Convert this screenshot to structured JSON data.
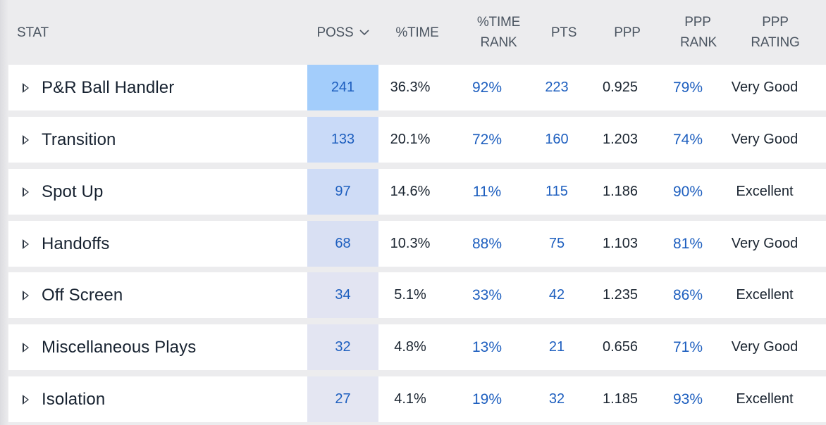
{
  "table": {
    "columns": [
      {
        "key": "stat",
        "label": "STAT"
      },
      {
        "key": "poss",
        "label": "POSS"
      },
      {
        "key": "pct_time",
        "label": "%TIME"
      },
      {
        "key": "pct_time_rank",
        "label": "%TIME RANK"
      },
      {
        "key": "pts",
        "label": "PTS"
      },
      {
        "key": "ppp",
        "label": "PPP"
      },
      {
        "key": "ppp_rank",
        "label": "PPP RANK"
      },
      {
        "key": "ppp_rating",
        "label": "PPP RATING"
      }
    ],
    "sort": {
      "column": "poss",
      "direction": "descending",
      "icon": "chevron-down-icon"
    },
    "rows": [
      {
        "stat": "P&R Ball Handler",
        "poss": "241",
        "pct_time": "36.3%",
        "pct_time_rank": "92%",
        "pts": "223",
        "ppp": "0.925",
        "ppp_rank": "79%",
        "ppp_rating": "Very Good",
        "poss_fill": "#a3cdfb"
      },
      {
        "stat": "Transition",
        "poss": "133",
        "pct_time": "20.1%",
        "pct_time_rank": "72%",
        "pts": "160",
        "ppp": "1.203",
        "ppp_rank": "74%",
        "ppp_rating": "Very Good",
        "poss_fill": "#c9daf8"
      },
      {
        "stat": "Spot Up",
        "poss": "97",
        "pct_time": "14.6%",
        "pct_time_rank": "11%",
        "pts": "115",
        "ppp": "1.186",
        "ppp_rank": "90%",
        "ppp_rating": "Excellent",
        "poss_fill": "#cfdcf6"
      },
      {
        "stat": "Handoffs",
        "poss": "68",
        "pct_time": "10.3%",
        "pct_time_rank": "88%",
        "pts": "75",
        "ppp": "1.103",
        "ppp_rank": "81%",
        "ppp_rating": "Very Good",
        "poss_fill": "#d9e0f3"
      },
      {
        "stat": "Off Screen",
        "poss": "34",
        "pct_time": "5.1%",
        "pct_time_rank": "33%",
        "pts": "42",
        "ppp": "1.235",
        "ppp_rank": "86%",
        "ppp_rating": "Excellent",
        "poss_fill": "#e2e4f2"
      },
      {
        "stat": "Miscellaneous Plays",
        "poss": "32",
        "pct_time": "4.8%",
        "pct_time_rank": "13%",
        "pts": "21",
        "ppp": "0.656",
        "ppp_rank": "71%",
        "ppp_rating": "Very Good",
        "poss_fill": "#e3e5f2"
      },
      {
        "stat": "Isolation",
        "poss": "27",
        "pct_time": "4.1%",
        "pct_time_rank": "19%",
        "pts": "32",
        "ppp": "1.185",
        "ppp_rank": "93%",
        "ppp_rating": "Excellent",
        "poss_fill": "#e4e6f2"
      }
    ]
  },
  "colors": {
    "header_bg": "#ececee",
    "header_text": "#4b5561",
    "link_blue": "#1e5fbf",
    "row_bg": "#ffffff"
  }
}
